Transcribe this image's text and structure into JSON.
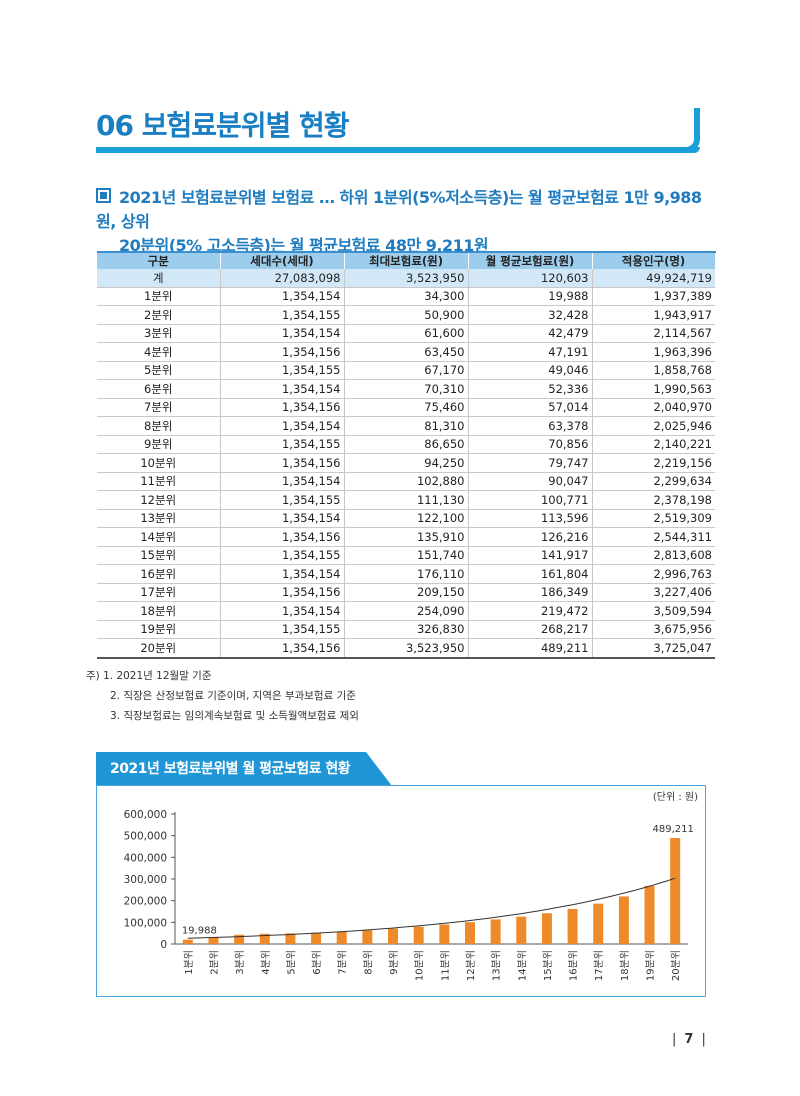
{
  "section": {
    "title": "06 보험료분위별 현황"
  },
  "summary": {
    "line1": "2021년 보험료분위별 보험료 … 하위 1분위(5%저소득층)는 월 평균보험료 1만 9,988원, 상위",
    "line2": "20분위(5% 고소득층)는 월 평균보험료 48만 9,211원"
  },
  "table": {
    "headers": [
      "구분",
      "세대수(세대)",
      "최대보험료(원)",
      "월 평균보험료(원)",
      "적용인구(명)"
    ],
    "rows": [
      [
        "계",
        "27,083,098",
        "3,523,950",
        "120,603",
        "49,924,719"
      ],
      [
        "1분위",
        "1,354,154",
        "34,300",
        "19,988",
        "1,937,389"
      ],
      [
        "2분위",
        "1,354,155",
        "50,900",
        "32,428",
        "1,943,917"
      ],
      [
        "3분위",
        "1,354,154",
        "61,600",
        "42,479",
        "2,114,567"
      ],
      [
        "4분위",
        "1,354,156",
        "63,450",
        "47,191",
        "1,963,396"
      ],
      [
        "5분위",
        "1,354,155",
        "67,170",
        "49,046",
        "1,858,768"
      ],
      [
        "6분위",
        "1,354,154",
        "70,310",
        "52,336",
        "1,990,563"
      ],
      [
        "7분위",
        "1,354,156",
        "75,460",
        "57,014",
        "2,040,970"
      ],
      [
        "8분위",
        "1,354,154",
        "81,310",
        "63,378",
        "2,025,946"
      ],
      [
        "9분위",
        "1,354,155",
        "86,650",
        "70,856",
        "2,140,221"
      ],
      [
        "10분위",
        "1,354,156",
        "94,250",
        "79,747",
        "2,219,156"
      ],
      [
        "11분위",
        "1,354,154",
        "102,880",
        "90,047",
        "2,299,634"
      ],
      [
        "12분위",
        "1,354,155",
        "111,130",
        "100,771",
        "2,378,198"
      ],
      [
        "13분위",
        "1,354,154",
        "122,100",
        "113,596",
        "2,519,309"
      ],
      [
        "14분위",
        "1,354,156",
        "135,910",
        "126,216",
        "2,544,311"
      ],
      [
        "15분위",
        "1,354,155",
        "151,740",
        "141,917",
        "2,813,608"
      ],
      [
        "16분위",
        "1,354,154",
        "176,110",
        "161,804",
        "2,996,763"
      ],
      [
        "17분위",
        "1,354,156",
        "209,150",
        "186,349",
        "3,227,406"
      ],
      [
        "18분위",
        "1,354,154",
        "254,090",
        "219,472",
        "3,509,594"
      ],
      [
        "19분위",
        "1,354,155",
        "326,830",
        "268,217",
        "3,675,956"
      ],
      [
        "20분위",
        "1,354,156",
        "3,523,950",
        "489,211",
        "3,725,047"
      ]
    ]
  },
  "notes": [
    "주) 1. 2021년 12월말 기준",
    "2. 직장은 산정보험료 기준이며, 지역은 부과보험료 기준",
    "3. 직장보험료는 임의계속보험료 및 소득월액보험료 제외"
  ],
  "chart_title": "2021년 보험료분위별 월 평균보험료 현황",
  "colors": {
    "accent": "#1a7ec2",
    "bar": "#ef8a2a",
    "header": "#9dcdec",
    "total_row": "#d3e8f7"
  },
  "chart_data": {
    "type": "bar",
    "title": "2021년 보험료분위별 월 평균보험료 현황",
    "unit_label": "(단위 : 원)",
    "categories": [
      "1분위",
      "2분위",
      "3분위",
      "4분위",
      "5분위",
      "6분위",
      "7분위",
      "8분위",
      "9분위",
      "10분위",
      "11분위",
      "12분위",
      "13분위",
      "14분위",
      "15분위",
      "16분위",
      "17분위",
      "18분위",
      "19분위",
      "20분위"
    ],
    "values": [
      19988,
      32428,
      42479,
      47191,
      49046,
      52336,
      57014,
      63378,
      70856,
      79747,
      90047,
      100771,
      113596,
      126216,
      141917,
      161804,
      186349,
      219472,
      268217,
      489211
    ],
    "data_labels": {
      "0": "19,988",
      "19": "489,211"
    },
    "yticks": [
      0,
      100000,
      200000,
      300000,
      400000,
      500000,
      600000
    ],
    "ytick_labels": [
      "0",
      "100,000",
      "200,000",
      "300,000",
      "400,000",
      "500,000",
      "600,000"
    ],
    "ylim": [
      0,
      600000
    ],
    "trendline": "exponential"
  },
  "page": {
    "number": "7",
    "separator": "|"
  }
}
